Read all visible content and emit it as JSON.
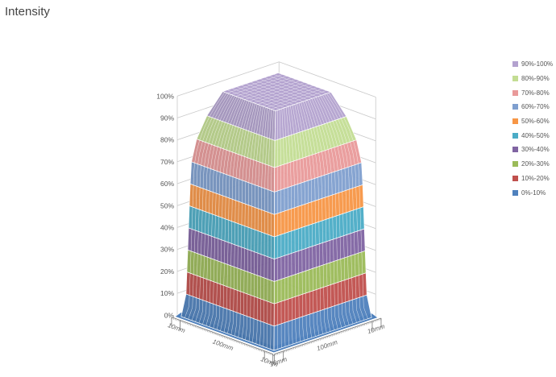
{
  "chart_data": {
    "type": "surface",
    "title": "Intensity",
    "z_ticks": [
      "0%",
      "10%",
      "20%",
      "30%",
      "40%",
      "50%",
      "60%",
      "70%",
      "80%",
      "90%",
      "100%"
    ],
    "zlim": [
      0,
      100
    ],
    "x_axis_labels": [
      "10mm",
      "100mm",
      "10mm"
    ],
    "y_axis_labels": [
      "10mm",
      "100mm",
      "10mm"
    ],
    "x_segments_mm": [
      10,
      100,
      10
    ],
    "y_segments_mm": [
      10,
      100,
      10
    ],
    "legend_placement": "right",
    "bands": [
      {
        "name": "0%-10%",
        "from": 0,
        "to": 10,
        "color": "#4f81bd"
      },
      {
        "name": "10%-20%",
        "from": 10,
        "to": 20,
        "color": "#c0504d"
      },
      {
        "name": "20%-30%",
        "from": 20,
        "to": 30,
        "color": "#9bbb59"
      },
      {
        "name": "30%-40%",
        "from": 30,
        "to": 40,
        "color": "#8064a2"
      },
      {
        "name": "40%-50%",
        "from": 40,
        "to": 50,
        "color": "#4bacc6"
      },
      {
        "name": "50%-60%",
        "from": 50,
        "to": 60,
        "color": "#f79646"
      },
      {
        "name": "60%-70%",
        "from": 60,
        "to": 70,
        "color": "#7f9fcf"
      },
      {
        "name": "70%-80%",
        "from": 70,
        "to": 80,
        "color": "#e99a9a"
      },
      {
        "name": "80%-90%",
        "from": 80,
        "to": 90,
        "color": "#c3dd93"
      },
      {
        "name": "90%-100%",
        "from": 90,
        "to": 100,
        "color": "#b3a2cf"
      }
    ],
    "grid": true
  }
}
